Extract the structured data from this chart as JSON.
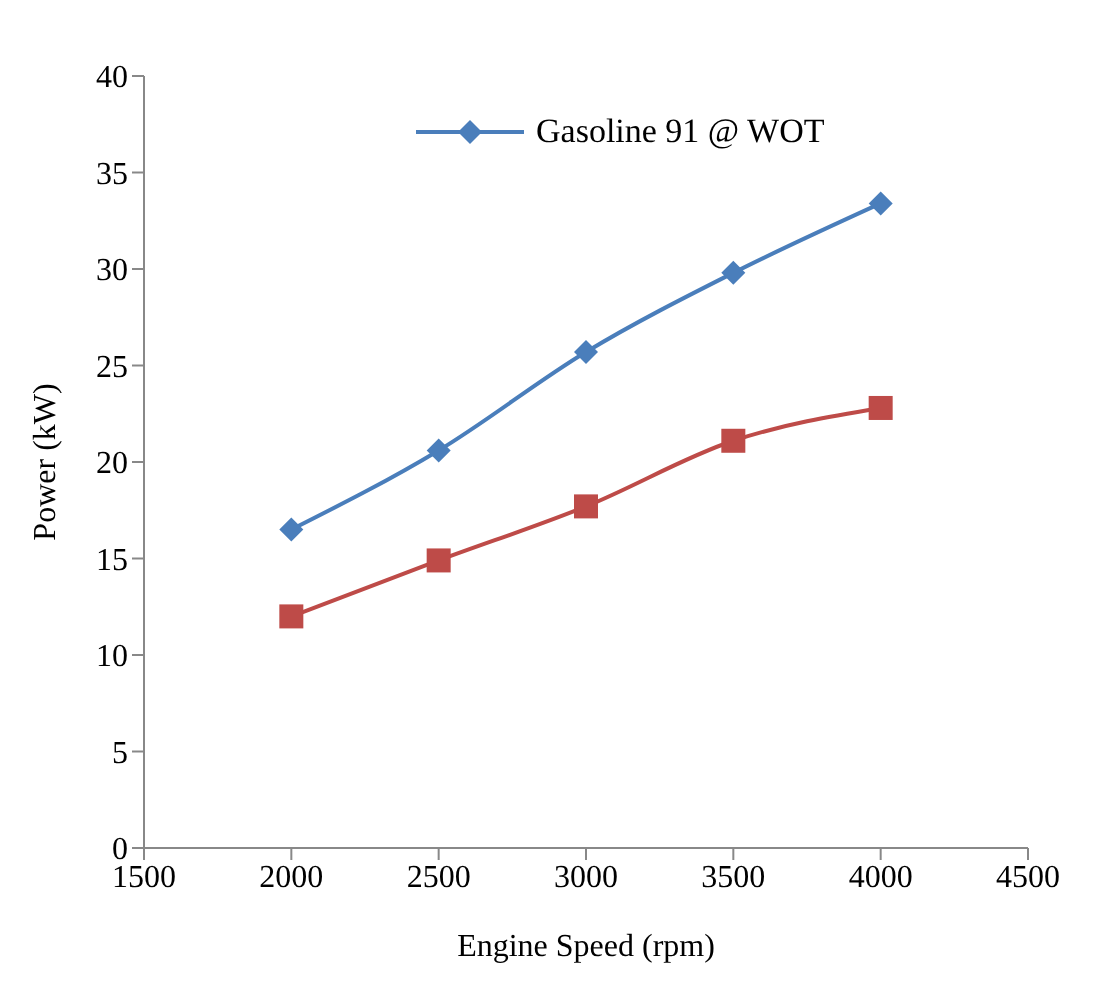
{
  "chart_data": {
    "type": "line",
    "xlabel": "Engine Speed (rpm)",
    "ylabel": "Power (kW)",
    "x": [
      2000,
      2500,
      3000,
      3500,
      4000
    ],
    "series": [
      {
        "name": "Gasoline 91 @ WOT",
        "color": "#4a7ebb",
        "marker": "diamond",
        "values": [
          16.5,
          20.6,
          25.7,
          29.8,
          33.4
        ]
      },
      {
        "color": "#be4b48",
        "marker": "square",
        "values": [
          12.0,
          14.9,
          17.7,
          21.1,
          22.8
        ]
      }
    ],
    "xlim": [
      1500,
      4500
    ],
    "xticks": [
      1500,
      2000,
      2500,
      3000,
      3500,
      4000,
      4500
    ],
    "ylim": [
      0,
      40
    ],
    "yticks": [
      0,
      5,
      10,
      15,
      20,
      25,
      30,
      35,
      40
    ],
    "grid": false,
    "legend": "top"
  }
}
